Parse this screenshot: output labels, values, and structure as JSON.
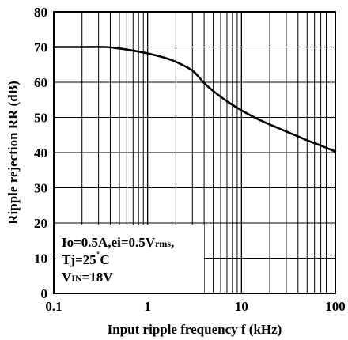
{
  "chart_data": {
    "type": "line",
    "title": "",
    "xlabel": "Input ripple frequency f (kHz)",
    "ylabel": "Ripple rejection RR (dB)",
    "x_scale": "log",
    "xlim": [
      0.1,
      100
    ],
    "ylim": [
      0,
      80
    ],
    "x_ticks": [
      0.1,
      1,
      10,
      100
    ],
    "x_tick_labels": [
      "0.1",
      "1",
      "10",
      "100"
    ],
    "y_ticks": [
      0,
      10,
      20,
      30,
      40,
      50,
      60,
      70,
      80
    ],
    "y_tick_labels": [
      "0",
      "10",
      "20",
      "30",
      "40",
      "50",
      "60",
      "70",
      "80"
    ],
    "grid": true,
    "series": [
      {
        "x": [
          0.1,
          0.2,
          0.35,
          0.5,
          0.7,
          1,
          1.5,
          2,
          3,
          4,
          5,
          7,
          10,
          15,
          20,
          30,
          50,
          70,
          100
        ],
        "y": [
          70,
          70,
          70,
          69.6,
          69,
          68.2,
          67,
          65.8,
          63.3,
          59.8,
          57.5,
          54.6,
          52,
          49.5,
          48,
          46,
          43.5,
          42,
          40.3
        ]
      }
    ],
    "annotation": {
      "line1": "Io=0.5A,ei=0.5V",
      "line1_sub": "rms",
      "line1_tail": ",",
      "line2_pre": "Tj=25",
      "line2_deg": "˚",
      "line2_post": "C",
      "line3_pre": "V",
      "line3_sub": "IN",
      "line3_post": "=18V"
    }
  }
}
